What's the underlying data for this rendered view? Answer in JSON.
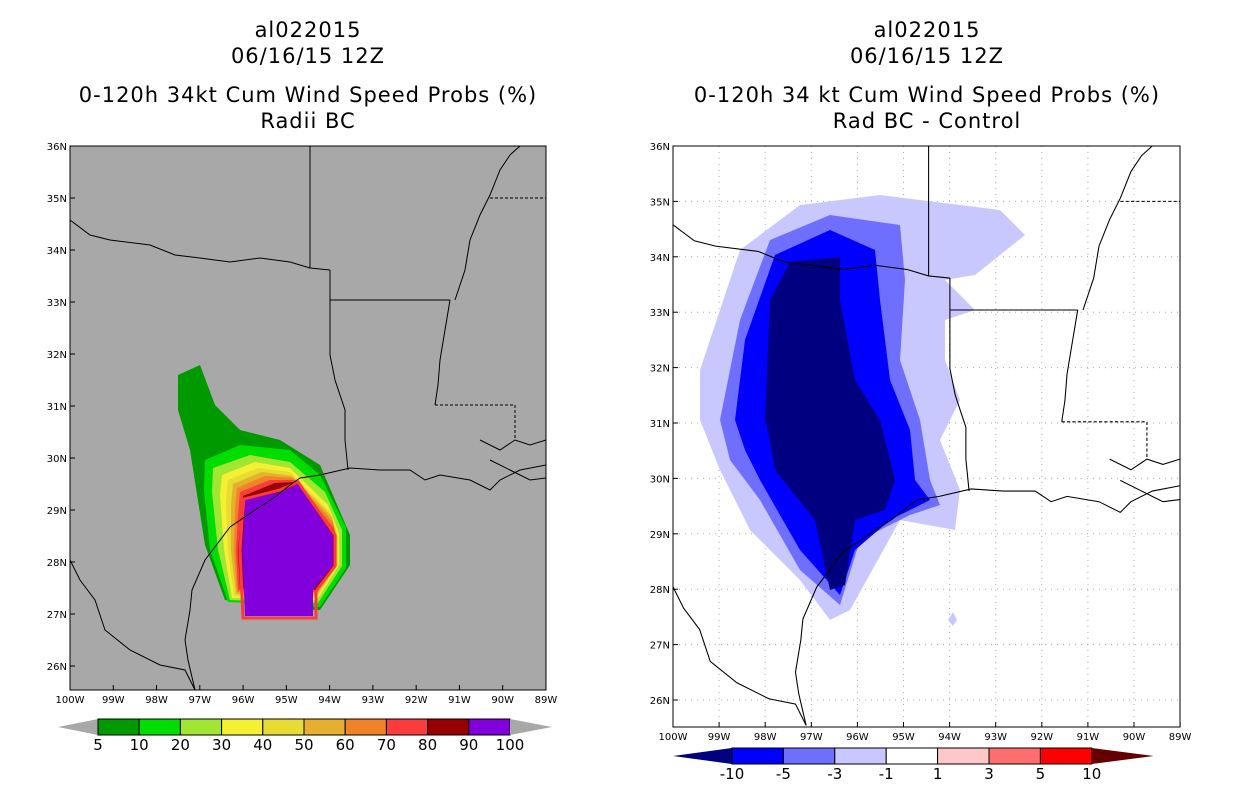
{
  "left_panel": {
    "title_lines": [
      "al022015",
      "06/16/15 12Z",
      "0-120h 34kt Cum Wind Speed Probs (%)",
      "Radii BC"
    ],
    "lat_labels": [
      "36N",
      "35N",
      "34N",
      "33N",
      "32N",
      "31N",
      "30N",
      "29N",
      "28N",
      "27N",
      "26N"
    ],
    "lon_labels": [
      "100W",
      "99W",
      "98W",
      "97W",
      "96W",
      "95W",
      "94W",
      "93W",
      "92W",
      "91W",
      "90W",
      "89W"
    ],
    "colorbar": {
      "labels": [
        "5",
        "10",
        "20",
        "30",
        "40",
        "50",
        "60",
        "70",
        "80",
        "90",
        "100"
      ],
      "colors": [
        "#009900",
        "#00dd00",
        "#a0e632",
        "#f5f032",
        "#e6dc32",
        "#e6af2d",
        "#f08228",
        "#fa3c3c",
        "#960000",
        "#8200dc"
      ]
    },
    "background": "#a8a8a8"
  },
  "right_panel": {
    "title_lines": [
      "al022015",
      "06/16/15 12Z",
      "0-120h 34 kt Cum Wind Speed Probs (%)",
      "Rad BC - Control"
    ],
    "lat_labels": [
      "36N",
      "35N",
      "34N",
      "33N",
      "32N",
      "31N",
      "30N",
      "29N",
      "28N",
      "27N",
      "26N"
    ],
    "lon_labels": [
      "100W",
      "99W",
      "98W",
      "97W",
      "96W",
      "95W",
      "94W",
      "93W",
      "92W",
      "91W",
      "90W",
      "89W"
    ],
    "colorbar": {
      "labels": [
        "-10",
        "-5",
        "-3",
        "-1",
        "1",
        "3",
        "5",
        "10"
      ],
      "colors": [
        "#000080",
        "#0000ff",
        "#6e6eff",
        "#c8c8ff",
        "#ffffff",
        "#ffc8c8",
        "#ff6e6e",
        "#ff0000",
        "#640000"
      ]
    }
  }
}
